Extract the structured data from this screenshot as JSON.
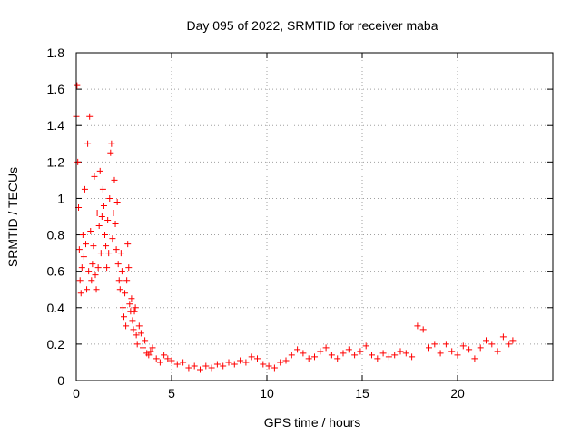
{
  "chart_data": {
    "type": "scatter",
    "title": "Day 095 of 2022, SRMTID for receiver maba",
    "xlabel": "GPS time / hours",
    "ylabel": "SRMTID / TECUs",
    "xlim": [
      0,
      25
    ],
    "ylim": [
      0,
      1.8
    ],
    "xticks": [
      "0",
      "5",
      "10",
      "15",
      "20"
    ],
    "yticks": [
      "0",
      "0.2",
      "0.4",
      "0.6",
      "0.8",
      "1",
      "1.2",
      "1.4",
      "1.6",
      "1.8"
    ],
    "grid": true,
    "marker": "+",
    "color": "#ff0000",
    "series": [
      {
        "name": "SRMTID",
        "x": [
          0.0,
          0.04,
          0.08,
          0.12,
          0.16,
          0.2,
          0.25,
          0.3,
          0.35,
          0.4,
          0.45,
          0.5,
          0.55,
          0.6,
          0.65,
          0.7,
          0.75,
          0.8,
          0.85,
          0.9,
          0.95,
          1.0,
          1.05,
          1.1,
          1.15,
          1.2,
          1.25,
          1.3,
          1.35,
          1.4,
          1.45,
          1.5,
          1.55,
          1.6,
          1.65,
          1.7,
          1.75,
          1.8,
          1.85,
          1.9,
          1.95,
          2.0,
          2.05,
          2.1,
          2.15,
          2.2,
          2.25,
          2.3,
          2.35,
          2.4,
          2.45,
          2.5,
          2.55,
          2.6,
          2.65,
          2.7,
          2.75,
          2.8,
          2.85,
          2.9,
          2.95,
          3.0,
          3.05,
          3.1,
          3.15,
          3.2,
          3.3,
          3.4,
          3.5,
          3.6,
          3.7,
          3.8,
          3.9,
          4.0,
          4.2,
          4.4,
          4.6,
          4.8,
          5.0,
          5.3,
          5.6,
          5.9,
          6.2,
          6.5,
          6.8,
          7.1,
          7.4,
          7.7,
          8.0,
          8.3,
          8.6,
          8.9,
          9.2,
          9.5,
          9.8,
          10.1,
          10.4,
          10.7,
          11.0,
          11.3,
          11.6,
          11.9,
          12.2,
          12.5,
          12.8,
          13.1,
          13.4,
          13.7,
          14.0,
          14.3,
          14.6,
          14.9,
          15.2,
          15.5,
          15.8,
          16.1,
          16.4,
          16.7,
          17.0,
          17.3,
          17.6,
          17.9,
          18.2,
          18.5,
          18.8,
          19.1,
          19.4,
          19.7,
          20.0,
          20.3,
          20.6,
          20.9,
          21.2,
          21.5,
          21.8,
          22.1,
          22.4,
          22.7,
          22.9
        ],
        "y": [
          1.45,
          1.62,
          1.2,
          0.95,
          0.72,
          0.55,
          0.48,
          0.62,
          0.8,
          0.68,
          1.05,
          0.75,
          0.5,
          1.3,
          0.6,
          1.45,
          0.82,
          0.55,
          0.64,
          0.74,
          1.12,
          0.58,
          0.5,
          0.92,
          0.62,
          0.85,
          1.15,
          0.7,
          0.9,
          1.05,
          0.96,
          0.8,
          0.74,
          0.62,
          0.88,
          0.7,
          1.0,
          1.25,
          1.3,
          0.78,
          0.92,
          1.1,
          0.86,
          0.72,
          0.98,
          0.64,
          0.55,
          0.5,
          0.7,
          0.6,
          0.4,
          0.35,
          0.48,
          0.3,
          0.55,
          0.75,
          0.62,
          0.42,
          0.38,
          0.45,
          0.33,
          0.28,
          0.38,
          0.4,
          0.25,
          0.2,
          0.3,
          0.26,
          0.18,
          0.22,
          0.15,
          0.14,
          0.16,
          0.18,
          0.12,
          0.1,
          0.14,
          0.12,
          0.11,
          0.09,
          0.1,
          0.07,
          0.08,
          0.06,
          0.08,
          0.07,
          0.09,
          0.08,
          0.1,
          0.09,
          0.11,
          0.1,
          0.13,
          0.12,
          0.09,
          0.08,
          0.07,
          0.1,
          0.11,
          0.14,
          0.17,
          0.15,
          0.12,
          0.13,
          0.16,
          0.18,
          0.14,
          0.12,
          0.15,
          0.17,
          0.14,
          0.16,
          0.19,
          0.14,
          0.12,
          0.15,
          0.13,
          0.14,
          0.16,
          0.15,
          0.13,
          0.3,
          0.28,
          0.18,
          0.2,
          0.15,
          0.2,
          0.16,
          0.14,
          0.19,
          0.17,
          0.12,
          0.18,
          0.22,
          0.2,
          0.16,
          0.24,
          0.2,
          0.22
        ]
      }
    ]
  }
}
